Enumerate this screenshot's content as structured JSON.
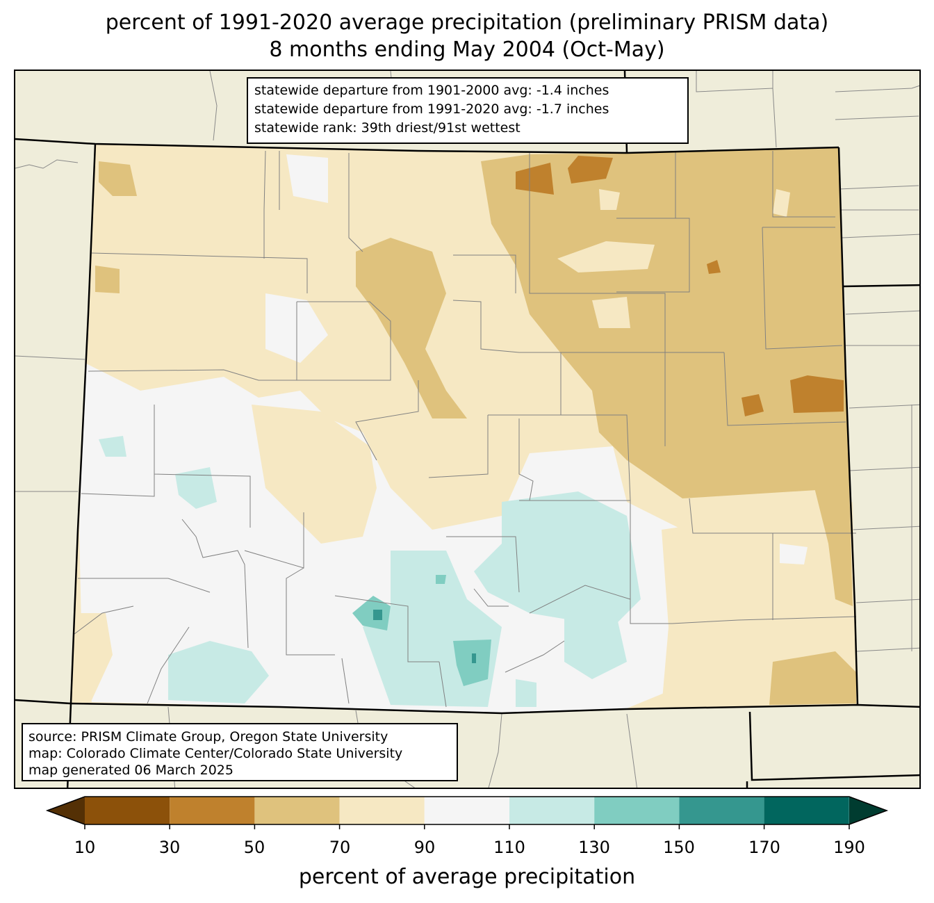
{
  "title": {
    "line1": "percent of 1991-2020 average precipitation (preliminary PRISM data)",
    "line2": "8 months ending May 2004 (Oct-May)"
  },
  "stats": {
    "line1": "statewide departure from 1901-2000 avg: -1.4 inches",
    "line2": "statewide departure from 1991-2020 avg: -1.7 inches",
    "line3": "statewide rank: 39th driest/91st wettest"
  },
  "source": {
    "line1": "source: PRISM Climate Group, Oregon State University",
    "line2": "map: Colorado Climate Center/Colorado State University",
    "line3": "map generated 06 March 2025"
  },
  "legend": {
    "title": "percent of average precipitation",
    "ticks": [
      "10",
      "30",
      "50",
      "70",
      "90",
      "110",
      "130",
      "150",
      "170",
      "190"
    ],
    "colors": {
      "under": "#543005",
      "10-30": "#8c510a",
      "30-50": "#bf812d",
      "50-70": "#dfc27d",
      "70-90": "#f6e8c3",
      "90-110": "#f5f5f5",
      "110-130": "#c7eae5",
      "130-150": "#80cdc1",
      "150-170": "#35978f",
      "170-190": "#01665e",
      "over": "#003c30"
    }
  },
  "map_colors": {
    "background": "#efedda",
    "county_line": "#808080",
    "state_line": "#000000"
  }
}
